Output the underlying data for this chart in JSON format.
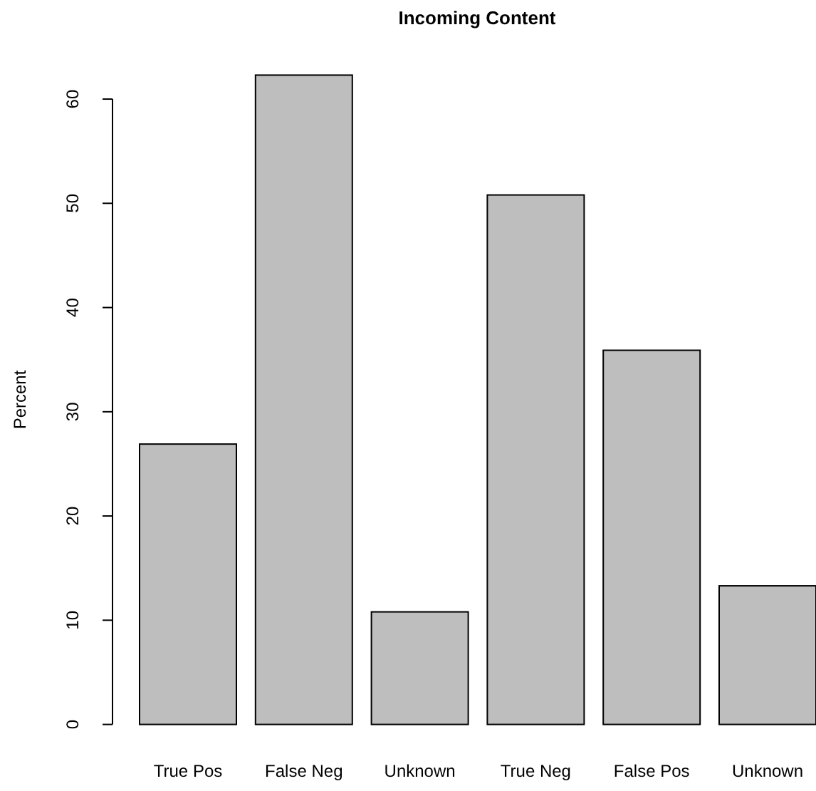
{
  "chart_data": {
    "type": "bar",
    "title": "Incoming Content",
    "ylabel": "Percent",
    "categories": [
      "True Pos",
      "False Neg",
      "Unknown",
      "True Neg",
      "False Pos",
      "Unknown"
    ],
    "values": [
      26.9,
      62.3,
      10.8,
      50.8,
      35.9,
      13.3
    ],
    "color": "#bebebe",
    "ylim": [
      0,
      62.3
    ],
    "yticks": [
      0,
      10,
      20,
      30,
      40,
      50,
      60
    ],
    "grid": false
  }
}
